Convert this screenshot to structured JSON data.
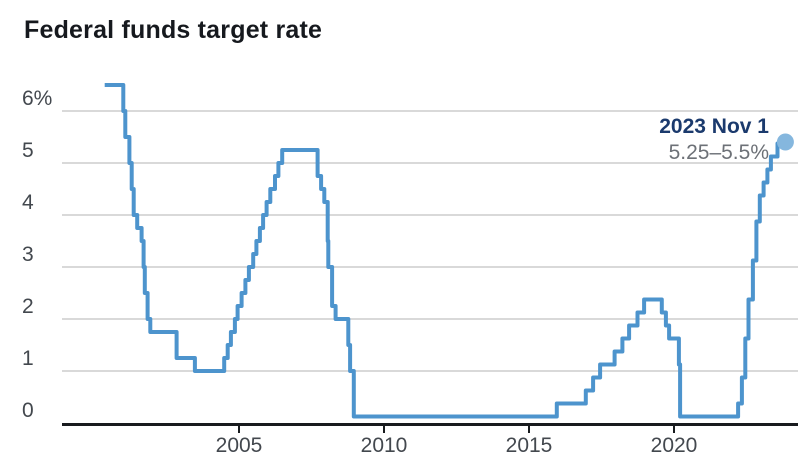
{
  "title": "Federal funds target rate",
  "annotation": {
    "date": "2023 Nov 1",
    "rate": "5.25–5.5%"
  },
  "colors": {
    "line": "#4d94cd",
    "dot": "#85b7de",
    "grid": "#d9d9d9",
    "axis": "#181b1e",
    "title": "#16191e",
    "tick_label": "#43484e",
    "annotation_date": "#1b3a6d",
    "annotation_rate": "#6d7177"
  },
  "chart_data": {
    "type": "line",
    "step": true,
    "title": "Federal funds target rate",
    "xlabel": "",
    "ylabel": "",
    "xlim": [
      1998.9,
      2024.3
    ],
    "ylim": [
      0,
      6.6
    ],
    "grid": "horizontal",
    "legend": "none",
    "x_ticks": [
      2005,
      2010,
      2015,
      2020
    ],
    "x_tick_labels": [
      "2005",
      "2010",
      "2015",
      "2020"
    ],
    "y_ticks": [
      0,
      1,
      2,
      3,
      4,
      5,
      6
    ],
    "y_tick_labels": [
      "0",
      "1",
      "2",
      "3",
      "4",
      "5",
      "6%"
    ],
    "series_name": "Federal funds target rate (%)",
    "points": [
      [
        2000.37,
        6.5
      ],
      [
        2001.01,
        6.0
      ],
      [
        2001.08,
        5.5
      ],
      [
        2001.22,
        5.0
      ],
      [
        2001.3,
        4.5
      ],
      [
        2001.37,
        4.0
      ],
      [
        2001.49,
        3.75
      ],
      [
        2001.64,
        3.5
      ],
      [
        2001.71,
        3.0
      ],
      [
        2001.75,
        2.5
      ],
      [
        2001.85,
        2.0
      ],
      [
        2001.94,
        1.75
      ],
      [
        2002.85,
        1.25
      ],
      [
        2003.48,
        1.0
      ],
      [
        2004.49,
        1.25
      ],
      [
        2004.61,
        1.5
      ],
      [
        2004.72,
        1.75
      ],
      [
        2004.86,
        2.0
      ],
      [
        2004.95,
        2.25
      ],
      [
        2005.09,
        2.5
      ],
      [
        2005.22,
        2.75
      ],
      [
        2005.34,
        3.0
      ],
      [
        2005.49,
        3.25
      ],
      [
        2005.6,
        3.5
      ],
      [
        2005.72,
        3.75
      ],
      [
        2005.83,
        4.0
      ],
      [
        2005.95,
        4.25
      ],
      [
        2006.08,
        4.5
      ],
      [
        2006.24,
        4.75
      ],
      [
        2006.36,
        5.0
      ],
      [
        2006.49,
        5.25
      ],
      [
        2007.71,
        4.75
      ],
      [
        2007.83,
        4.5
      ],
      [
        2007.94,
        4.25
      ],
      [
        2008.06,
        3.5
      ],
      [
        2008.08,
        3.0
      ],
      [
        2008.21,
        2.25
      ],
      [
        2008.33,
        2.0
      ],
      [
        2008.77,
        1.5
      ],
      [
        2008.83,
        1.0
      ],
      [
        2008.96,
        0.125
      ],
      [
        2015.96,
        0.375
      ],
      [
        2016.96,
        0.625
      ],
      [
        2017.21,
        0.875
      ],
      [
        2017.45,
        1.125
      ],
      [
        2017.95,
        1.375
      ],
      [
        2018.22,
        1.625
      ],
      [
        2018.45,
        1.875
      ],
      [
        2018.74,
        2.125
      ],
      [
        2018.97,
        2.375
      ],
      [
        2019.58,
        2.125
      ],
      [
        2019.72,
        1.875
      ],
      [
        2019.83,
        1.625
      ],
      [
        2020.17,
        1.125
      ],
      [
        2020.21,
        0.125
      ],
      [
        2022.21,
        0.375
      ],
      [
        2022.34,
        0.875
      ],
      [
        2022.46,
        1.625
      ],
      [
        2022.57,
        2.375
      ],
      [
        2022.72,
        3.125
      ],
      [
        2022.84,
        3.875
      ],
      [
        2022.96,
        4.375
      ],
      [
        2023.09,
        4.625
      ],
      [
        2023.22,
        4.875
      ],
      [
        2023.34,
        5.125
      ],
      [
        2023.57,
        5.375
      ]
    ],
    "end_dot": {
      "x": 2023.84,
      "y": 5.375,
      "label": "2023 Nov 1: 5.25–5.5%"
    }
  }
}
